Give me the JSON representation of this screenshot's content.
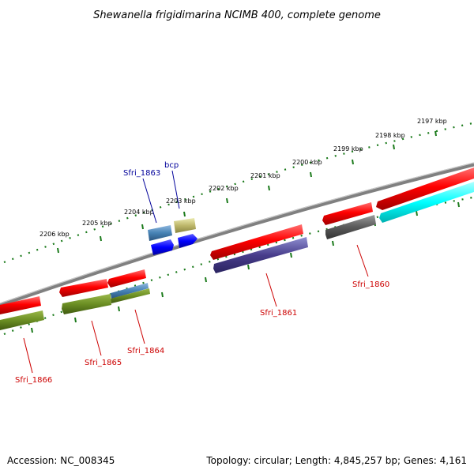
{
  "title": "Shewanella frigidimarina NCIMB 400, complete genome",
  "footer": {
    "accession": "Accession: NC_008345",
    "topology": "Topology: circular; Length: 4,845,257 bp; Genes: 4,161"
  },
  "ticks": [
    "2197 kbp",
    "2198 kbp",
    "2199 kbp",
    "2200 kbp",
    "2201 kbp",
    "2202 kbp",
    "2203 kbp",
    "2204 kbp",
    "2205 kbp",
    "2206 kbp"
  ],
  "genes": {
    "sfri_1860": "Sfri_1860",
    "sfri_1861": "Sfri_1861",
    "sfri_1863": "Sfri_1863",
    "bcp": "bcp",
    "sfri_1864": "Sfri_1864",
    "sfri_1865": "Sfri_1865",
    "sfri_1866": "Sfri_1866"
  },
  "colors": {
    "backbone": "#808080",
    "cds": "#ff0000",
    "tick": "#1a7a1a",
    "label_red": "#cc0000",
    "label_blue": "#00009a"
  }
}
